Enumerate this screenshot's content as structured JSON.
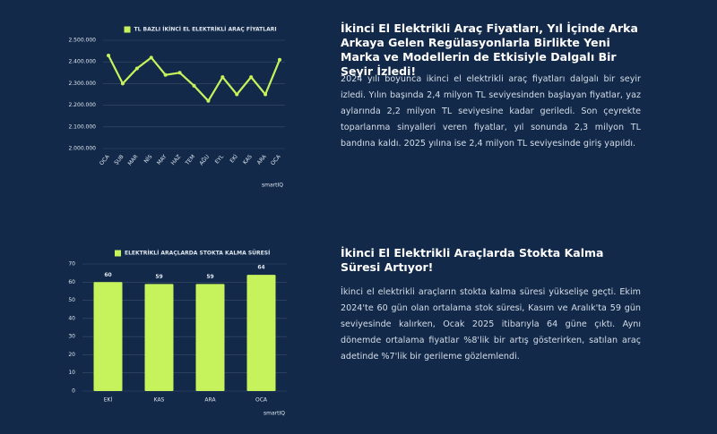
{
  "chart_data": [
    {
      "type": "line",
      "categories": [
        "OCA",
        "ŞUB",
        "MAR",
        "NİS",
        "MAY",
        "HAZ",
        "TEM",
        "AĞU",
        "EYL",
        "EKİ",
        "KAS",
        "ARA",
        "OCA"
      ],
      "series": [
        {
          "name": "TL BAZLI İKİNCİ EL ELEKTRİKLİ ARAÇ FİYATLARI",
          "color": "#c6f35b",
          "values": [
            2430000,
            2300000,
            2370000,
            2420000,
            2340000,
            2350000,
            2290000,
            2220000,
            2330000,
            2250000,
            2330000,
            2250000,
            2410000
          ]
        }
      ],
      "ylim": [
        2000000,
        2500000
      ],
      "yticks": [
        {
          "value": 2000000,
          "label": "2.000.000"
        },
        {
          "value": 2100000,
          "label": "2.100.000"
        },
        {
          "value": 2200000,
          "label": "2.200.000"
        },
        {
          "value": 2300000,
          "label": "2.300.000"
        },
        {
          "value": 2400000,
          "label": "2.400.000"
        },
        {
          "value": 2500000,
          "label": "2.500.000"
        }
      ],
      "grid": true,
      "logo": "smartIQ"
    },
    {
      "type": "bar",
      "categories": [
        "EKİ",
        "KAS",
        "ARA",
        "OCA"
      ],
      "series": [
        {
          "name": "ELEKTRİKLİ ARAÇLARDA STOKTA KALMA SÜRESİ",
          "color": "#c6f35b",
          "values": [
            60,
            59,
            59,
            64
          ]
        }
      ],
      "ylim": [
        0,
        70
      ],
      "yticks": [
        0,
        10,
        20,
        30,
        40,
        50,
        60,
        70
      ],
      "grid": true,
      "logo": "smartIQ"
    }
  ],
  "sections": [
    {
      "heading": "İkinci El Elektrikli Araç Fiyatları, Yıl İçinde Arka Arkaya Gelen Regülasyonlarla Birlikte Yeni Marka ve Modellerin de Etkisiyle Dalgalı Bir Seyir İzledi!",
      "body": "2024 yılı boyunca ikinci el elektrikli araç fiyatları dalgalı bir seyir izledi. Yılın başında 2,4 milyon TL seviyesinden başlayan fiyatlar, yaz aylarında 2,2 milyon TL seviyesine kadar geriledi. Son çeyrekte toparlanma sinyalleri veren fiyatlar, yıl sonunda 2,3 milyon TL bandına kaldı. 2025 yılına ise 2,4 milyon TL seviyesinde giriş yapıldı."
    },
    {
      "heading": "İkinci El Elektrikli Araçlarda Stokta Kalma Süresi Artıyor!",
      "body": "İkinci el elektrikli araçların stokta kalma süresi yükselişe geçti. Ekim 2024'te 60 gün olan ortalama stok süresi, Kasım ve Aralık'ta 59 gün seviyesinde kalırken, Ocak 2025 itibarıyla 64 güne çıktı. Aynı dönemde ortalama fiyatlar %8'lik bir artış gösterirken, satılan araç adetinde %7'lik bir gerileme gözlemlendi."
    }
  ]
}
